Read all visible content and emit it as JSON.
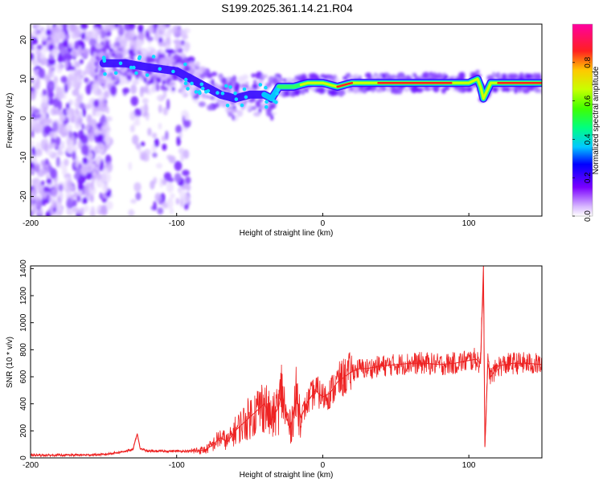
{
  "title": "S199.2025.361.14.21.R04",
  "chart_data": [
    {
      "type": "heatmap",
      "xlabel": "Height of straight line (km)",
      "ylabel": "Frequency (Hz)",
      "xlim": [
        -200,
        150
      ],
      "ylim": [
        -25,
        24
      ],
      "x_ticks": [
        -200,
        -100,
        0,
        100
      ],
      "y_ticks": [
        -20,
        -10,
        0,
        10,
        20
      ],
      "colorbar": {
        "label": "Normalized spectral amplitude",
        "range": [
          0,
          1
        ],
        "ticks": [
          0.0,
          0.2,
          0.4,
          0.6,
          0.8
        ]
      },
      "ridge": {
        "x": [
          -150,
          -135,
          -120,
          -100,
          -90,
          -80,
          -70,
          -60,
          -50,
          -40,
          -35,
          -30,
          -20,
          -10,
          0,
          10,
          20,
          40,
          60,
          80,
          100,
          106,
          108,
          110,
          115,
          130,
          150
        ],
        "y": [
          14,
          14,
          13,
          12,
          10,
          8,
          6,
          5,
          6,
          6,
          5,
          8,
          8,
          9,
          9,
          8,
          9,
          9,
          9,
          9,
          9,
          10,
          8,
          5,
          9,
          9,
          9
        ]
      }
    },
    {
      "type": "line",
      "xlabel": "Height of straight line (km)",
      "ylabel": "SNR (10 * v/v)",
      "xlim": [
        -200,
        150
      ],
      "ylim": [
        0,
        1420
      ],
      "x_ticks": [
        -200,
        -100,
        0,
        100
      ],
      "y_ticks": [
        0,
        200,
        400,
        600,
        800,
        1000,
        1200,
        1400
      ],
      "series": [
        {
          "color": "#ee2222",
          "x": [
            -200,
            -180,
            -160,
            -150,
            -140,
            -130,
            -127,
            -125,
            -120,
            -110,
            -100,
            -90,
            -80,
            -75,
            -70,
            -65,
            -60,
            -55,
            -50,
            -45,
            -40,
            -35,
            -30,
            -28,
            -25,
            -22,
            -20,
            -18,
            -15,
            -10,
            -5,
            0,
            5,
            10,
            15,
            20,
            25,
            30,
            40,
            50,
            60,
            70,
            80,
            90,
            100,
            105,
            108,
            110,
            111,
            113,
            115,
            120,
            130,
            140,
            150
          ],
          "y": [
            20,
            20,
            22,
            25,
            40,
            60,
            180,
            70,
            50,
            50,
            50,
            50,
            60,
            100,
            150,
            120,
            200,
            250,
            300,
            350,
            400,
            280,
            380,
            500,
            300,
            220,
            350,
            450,
            300,
            420,
            500,
            450,
            480,
            560,
            600,
            640,
            660,
            660,
            680,
            690,
            700,
            700,
            690,
            700,
            720,
            730,
            700,
            1420,
            80,
            700,
            600,
            680,
            700,
            700,
            690
          ]
        }
      ]
    }
  ]
}
